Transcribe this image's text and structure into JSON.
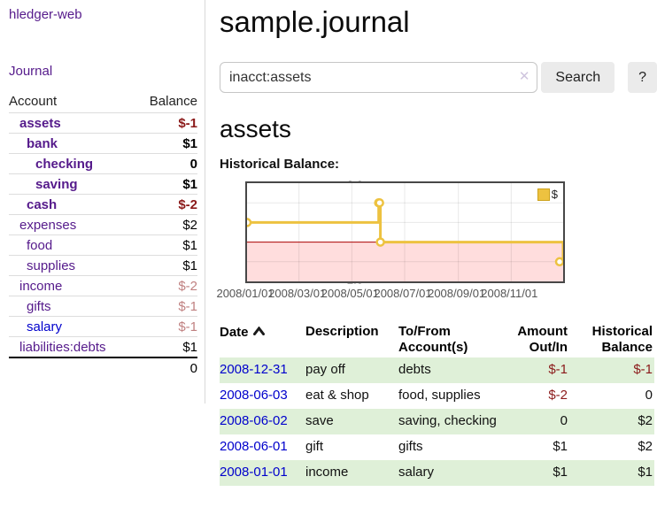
{
  "colors": {
    "link_purple": "#551a8b",
    "link_blue": "#0000cc",
    "negative_strong": "#8b1a1a",
    "negative_faded": "#c08181",
    "row_stripe_green": "#dff0d8",
    "chart_series_gold": "#edc240",
    "chart_negative_region": "#ffdddd",
    "chart_zero_line": "#aa0000"
  },
  "sidebar": {
    "brand": "hledger-web",
    "nav": {
      "journal": "Journal"
    },
    "table": {
      "account_header": "Account",
      "balance_header": "Balance",
      "accounts": [
        {
          "name": "assets",
          "indent": 1,
          "bold": true,
          "balance": "$-1",
          "neg": "strong"
        },
        {
          "name": "bank",
          "indent": 2,
          "bold": true,
          "balance": "$1"
        },
        {
          "name": "checking",
          "indent": 3,
          "bold": true,
          "balance": "0"
        },
        {
          "name": "saving",
          "indent": 3,
          "bold": true,
          "balance": "$1"
        },
        {
          "name": "cash",
          "indent": 2,
          "bold": true,
          "balance": "$-2",
          "neg": "strong"
        },
        {
          "name": "expenses",
          "indent": 1,
          "bold": false,
          "balance": "$2"
        },
        {
          "name": "food",
          "indent": 2,
          "bold": false,
          "balance": "$1"
        },
        {
          "name": "supplies",
          "indent": 2,
          "bold": false,
          "balance": "$1"
        },
        {
          "name": "income",
          "indent": 1,
          "bold": false,
          "balance": "$-2",
          "neg": "faded"
        },
        {
          "name": "gifts",
          "indent": 2,
          "bold": false,
          "balance": "$-1",
          "neg": "faded"
        },
        {
          "name": "salary",
          "indent": 2,
          "bold": false,
          "balance": "$-1",
          "neg": "faded",
          "link_color": "blue"
        },
        {
          "name": "liabilities:debts",
          "indent": 1,
          "bold": false,
          "balance": "$1"
        }
      ],
      "total": "0"
    }
  },
  "header": {
    "title": "sample.journal"
  },
  "search": {
    "value": "inacct:assets",
    "clear_icon": "✕",
    "button": "Search",
    "help_button": "?"
  },
  "account_page": {
    "heading": "assets",
    "chart_label": "Historical Balance:"
  },
  "chart_data": {
    "type": "line",
    "step": true,
    "title": "Historical Balance",
    "series": [
      {
        "name": "$",
        "color": "#edc240",
        "points": [
          [
            "2008-01-01",
            1
          ],
          [
            "2008-06-01",
            2
          ],
          [
            "2008-06-02",
            2
          ],
          [
            "2008-06-03",
            0
          ],
          [
            "2008-12-31",
            -1
          ]
        ]
      }
    ],
    "x_start": "2008-01-01",
    "x_end": "2008-12-31",
    "x_ticks": [
      {
        "date": "2008-01-01",
        "label": "2008/01/01"
      },
      {
        "date": "2008-03-01",
        "label": "2008/03/01"
      },
      {
        "date": "2008-05-01",
        "label": "2008/05/01"
      },
      {
        "date": "2008-07-01",
        "label": "2008/07/01"
      },
      {
        "date": "2008-09-01",
        "label": "2008/09/01"
      },
      {
        "date": "2008-11-01",
        "label": "2008/11/01"
      }
    ],
    "y_ticks": [
      3.0,
      2.0,
      1.0,
      0.0,
      -1.0,
      -2.0
    ],
    "ylim": [
      -2,
      3
    ],
    "legend": {
      "label": "$",
      "position": "top-right"
    },
    "grid": true,
    "negative_region_color": "#ffdddd",
    "zero_line_color": "#aa0000"
  },
  "register_table": {
    "headers": {
      "date": "Date",
      "description": "Description",
      "tofrom": "To/From Account(s)",
      "amount": "Amount Out/In",
      "balance": "Historical Balance"
    },
    "rows": [
      {
        "date": "2008-12-31",
        "description": "pay off",
        "tofrom": "debts",
        "amount": "$-1",
        "balance": "$-1"
      },
      {
        "date": "2008-06-03",
        "description": "eat & shop",
        "tofrom": "food, supplies",
        "amount": "$-2",
        "balance": "0"
      },
      {
        "date": "2008-06-02",
        "description": "save",
        "tofrom": "saving, checking",
        "amount": "0",
        "balance": "$2"
      },
      {
        "date": "2008-06-01",
        "description": "gift",
        "tofrom": "gifts",
        "amount": "$1",
        "balance": "$2"
      },
      {
        "date": "2008-01-01",
        "description": "income",
        "tofrom": "salary",
        "amount": "$1",
        "balance": "$1"
      }
    ]
  }
}
